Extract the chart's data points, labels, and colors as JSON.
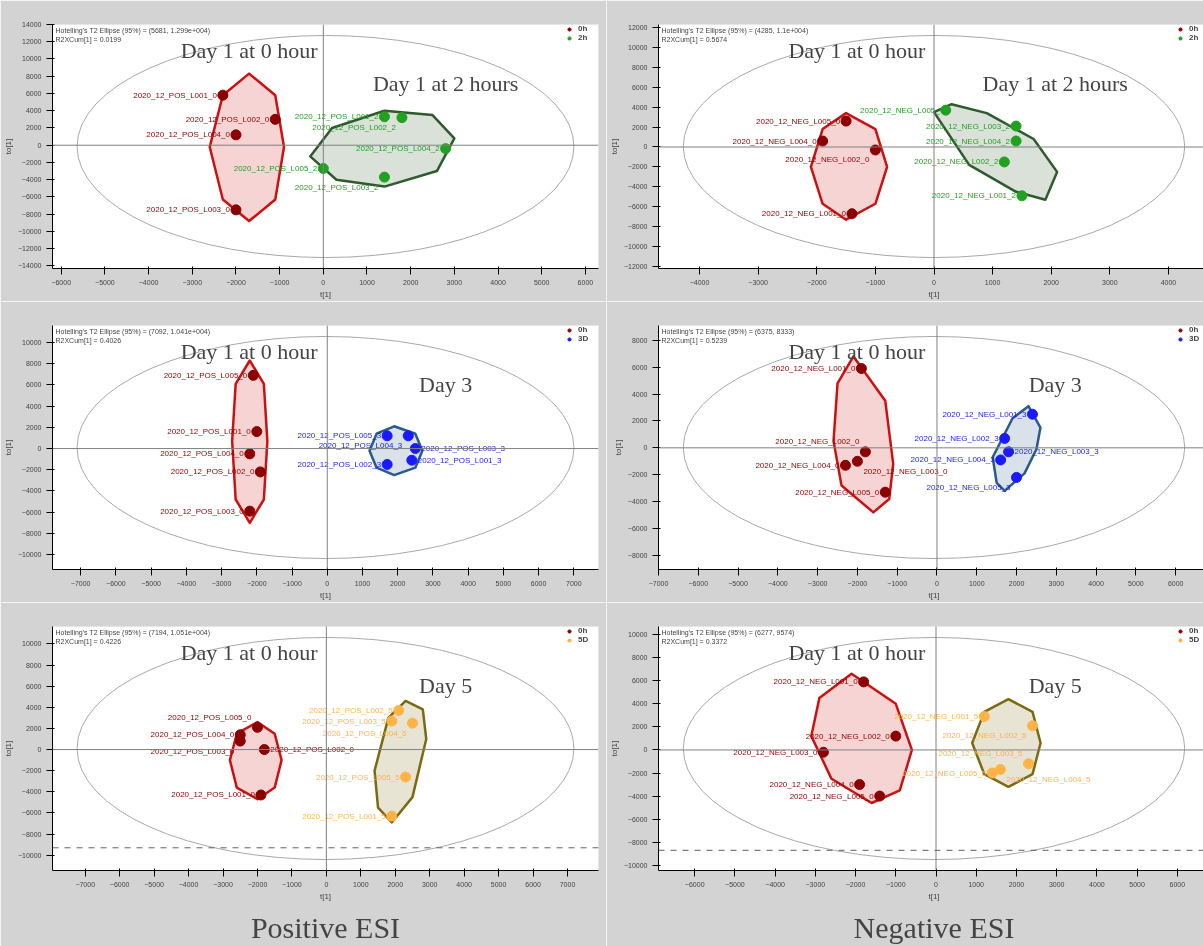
{
  "chart_data": [
    {
      "type": "scatter",
      "xlabel": "t[1]",
      "ylabel": "to[1]",
      "xlim": [
        -6200,
        6300
      ],
      "ylim": [
        -14300,
        14000
      ],
      "xticks": [
        -6000,
        -5000,
        -4000,
        -3000,
        -2000,
        -1000,
        0,
        1000,
        2000,
        3000,
        4000,
        5000,
        6000
      ],
      "yticks": [
        -14000,
        -12000,
        -10000,
        -8000,
        -6000,
        -4000,
        -2000,
        0,
        2000,
        4000,
        6000,
        8000,
        10000,
        12000,
        14000
      ],
      "grid": false,
      "legend": "top right",
      "annotations": [
        "Hotelling's T2 Ellipse (95%) = (5681, 1.299e+004)",
        "R2XCum[1] = 0.0199",
        "Day 1 at 0 hour",
        "Day 1 at 2 hours"
      ],
      "ref_lines": [
        {
          "axis": "x",
          "value": 0,
          "color": "#808080",
          "line_style": "solid"
        },
        {
          "axis": "y",
          "value": 0,
          "color": "#808080",
          "line_style": "solid"
        }
      ],
      "series": [
        {
          "type": "area",
          "color": "#cc1111",
          "x": [
            -900,
            -1100,
            -1700,
            -2300,
            -2600,
            -2300,
            -1700,
            -1100,
            -900
          ],
          "values": [
            -200,
            5800,
            8300,
            5800,
            -200,
            -6300,
            -8800,
            -6300,
            -200
          ]
        },
        {
          "type": "area",
          "color": "#2e5a2e",
          "x": [
            3000,
            2500,
            1400,
            200,
            -300,
            300,
            1400,
            2600,
            3000
          ],
          "values": [
            800,
            3500,
            4000,
            2000,
            -1300,
            -4000,
            -4800,
            -3000,
            800
          ]
        },
        {
          "type": "scatter",
          "name": "0h",
          "color": "#8b0000",
          "x": [
            -2300,
            -1100,
            -2000,
            -2000
          ],
          "values": [
            5800,
            3000,
            1200,
            -7500
          ],
          "value_labels": [
            "2020_12_POS_L001_0",
            "2020_12_POS_L002_0",
            "2020_12_POS_L004_0",
            "2020_12_POS_L003_0"
          ]
        },
        {
          "type": "scatter",
          "name": "2h",
          "color": "#22a022",
          "x": [
            1400,
            1800,
            2800,
            0,
            1400
          ],
          "values": [
            3300,
            3200,
            -400,
            -2700,
            -3700
          ],
          "value_labels": [
            "2020_12_POS_L001_2",
            "2020_12_POS_L002_2",
            "2020_12_POS_L004_2",
            "2020_12_POS_L005_2",
            "2020_12_POS_L003_2"
          ]
        }
      ]
    },
    {
      "type": "scatter",
      "xlabel": "t[1]",
      "ylabel": "to[1]",
      "xlim": [
        -4700,
        4700
      ],
      "ylim": [
        -12200,
        12300
      ],
      "xticks": [
        -4000,
        -3000,
        -2000,
        -1000,
        0,
        1000,
        2000,
        3000,
        4000
      ],
      "yticks": [
        -12000,
        -10000,
        -8000,
        -6000,
        -4000,
        -2000,
        0,
        2000,
        4000,
        6000,
        8000,
        10000,
        12000
      ],
      "grid": false,
      "legend": "top right",
      "annotations": [
        "Hotelling's T2 Ellipse (95%) = (4285, 1.1e+004)",
        "R2XCum[1] = 0.5674",
        "Day 1 at 0 hour",
        "Day 1 at 2 hours"
      ],
      "ref_lines": [
        {
          "axis": "x",
          "value": 0,
          "color": "#808080",
          "line_style": "solid"
        },
        {
          "axis": "y",
          "value": 0,
          "color": "#808080",
          "line_style": "solid"
        }
      ],
      "series": [
        {
          "type": "area",
          "color": "#cc1111",
          "x": [
            -800,
            -1000,
            -1500,
            -1900,
            -2100,
            -1900,
            -1500,
            -1000,
            -800
          ],
          "values": [
            -2000,
            1800,
            3400,
            1800,
            -2000,
            -5700,
            -7300,
            -5700,
            -2000
          ]
        },
        {
          "type": "area",
          "color": "#2e5a2e",
          "x": [
            0,
            300,
            900,
            1700,
            2100,
            1900,
            1400,
            600,
            0
          ],
          "values": [
            3500,
            4300,
            3400,
            800,
            -2500,
            -5300,
            -4500,
            -1800,
            3500
          ]
        },
        {
          "type": "scatter",
          "name": "0h",
          "color": "#8b0000",
          "x": [
            -1500,
            -1900,
            -1000,
            -1400
          ],
          "values": [
            2600,
            600,
            -300,
            -6700
          ],
          "value_labels": [
            "2020_12_NEG_L005_0",
            "2020_12_NEG_L004_0",
            "2020_12_NEG_L002_0",
            "2020_12_NEG_L001_0"
          ]
        },
        {
          "type": "scatter",
          "name": "2h",
          "color": "#22a022",
          "x": [
            200,
            1400,
            1400,
            1200,
            1500
          ],
          "values": [
            3700,
            2100,
            600,
            -1500,
            -4900
          ],
          "value_labels": [
            "2020_12_NEG_L005_",
            "2020_12_NEG_L003_2",
            "2020_12_NEG_L004_2",
            "2020_12_NEG_L002_2",
            "2020_12_NEG_L001_2"
          ]
        }
      ]
    },
    {
      "type": "scatter",
      "xlabel": "t[1]",
      "ylabel": "to[1]",
      "xlim": [
        -7800,
        7700
      ],
      "ylim": [
        -11400,
        11600
      ],
      "xticks": [
        -7000,
        -6000,
        -5000,
        -4000,
        -3000,
        -2000,
        -1000,
        0,
        1000,
        2000,
        3000,
        4000,
        5000,
        6000,
        7000
      ],
      "yticks": [
        -10000,
        -8000,
        -6000,
        -4000,
        -2000,
        0,
        2000,
        4000,
        6000,
        8000,
        10000
      ],
      "grid": false,
      "legend": "top right",
      "annotations": [
        "Hotelling's T2 Ellipse (95%) = (7092, 1.041e+004)",
        "R2XCum[1] = 0.4026",
        "Day 1 at 0 hour",
        "Day 3"
      ],
      "ref_lines": [
        {
          "axis": "x",
          "value": 0,
          "color": "#808080",
          "line_style": "solid"
        },
        {
          "axis": "y",
          "value": 0,
          "color": "#808080",
          "line_style": "solid"
        }
      ],
      "series": [
        {
          "type": "area",
          "color": "#cc1111",
          "x": [
            -1700,
            -1800,
            -2200,
            -2600,
            -2700,
            -2600,
            -2200,
            -1800,
            -1700
          ],
          "values": [
            700,
            6100,
            8300,
            6100,
            700,
            -4800,
            -7000,
            -4800,
            700
          ]
        },
        {
          "type": "area",
          "color": "#2a5a8a",
          "x": [
            2700,
            2500,
            1900,
            1400,
            1200,
            1400,
            1900,
            2500,
            2700
          ],
          "values": [
            -200,
            1400,
            2100,
            1400,
            -200,
            -1800,
            -2500,
            -1800,
            -200
          ]
        },
        {
          "type": "scatter",
          "name": "0h",
          "color": "#8b0000",
          "x": [
            -2100,
            -2000,
            -2200,
            -1900,
            -2200
          ],
          "values": [
            6900,
            1600,
            -500,
            -2200,
            -5900
          ],
          "value_labels": [
            "2020_12_POS_L005_0",
            "2020_12_POS_L001_0",
            "2020_12_POS_L004_0",
            "2020_12_POS_L002_0",
            "2020_12_POS_L003_0"
          ]
        },
        {
          "type": "scatter",
          "name": "3D",
          "color": "#1a1aff",
          "x": [
            1700,
            2300,
            2500,
            2400,
            1700
          ],
          "values": [
            1200,
            1200,
            0,
            -1100,
            -1500
          ],
          "value_labels": [
            "2020_12_POS_L005_3",
            "2020_12_POS_L004_3",
            "2020_12_POS_L003_3",
            "2020_12_POS_L001_3",
            "2020_12_POS_L002_3"
          ]
        }
      ]
    },
    {
      "type": "scatter",
      "xlabel": "t[1]",
      "ylabel": "to[1]",
      "xlim": [
        -7000,
        6850
      ],
      "ylim": [
        -9050,
        9100
      ],
      "xticks": [
        -7000,
        -6000,
        -5000,
        -4000,
        -3000,
        -2000,
        -1000,
        0,
        1000,
        2000,
        3000,
        4000,
        5000,
        6000
      ],
      "yticks": [
        -8000,
        -6000,
        -4000,
        -2000,
        0,
        2000,
        4000,
        6000,
        8000
      ],
      "grid": false,
      "legend": "top right",
      "annotations": [
        "Hotelling's T2 Ellipse (95%) = (6375, 8333)",
        "R2XCum[1] = 0.5239",
        "Day 1 at 0 hour",
        "Day 3"
      ],
      "ref_lines": [
        {
          "axis": "x",
          "value": 0,
          "color": "#808080",
          "line_style": "solid"
        },
        {
          "axis": "y",
          "value": 0,
          "color": "#808080",
          "line_style": "solid"
        }
      ],
      "series": [
        {
          "type": "area",
          "color": "#cc1111",
          "x": [
            -1100,
            -1300,
            -2100,
            -2500,
            -2600,
            -2400,
            -1600,
            -1200,
            -1100
          ],
          "values": [
            -1200,
            3500,
            6800,
            4800,
            500,
            -2800,
            -4800,
            -3800,
            -1200
          ]
        },
        {
          "type": "area",
          "color": "#2a5a8a",
          "x": [
            2600,
            2300,
            1900,
            1400,
            1500,
            1700,
            2200,
            2500,
            2600
          ],
          "values": [
            1500,
            3100,
            2200,
            -700,
            -2600,
            -3200,
            -1900,
            -100,
            1500
          ]
        },
        {
          "type": "scatter",
          "name": "0h",
          "color": "#8b0000",
          "x": [
            -1900,
            -1800,
            -2000,
            -2300,
            -1300
          ],
          "values": [
            5900,
            -300,
            -1000,
            -1300,
            -3300
          ],
          "value_labels": [
            "2020_12_NEG_L001_0",
            "2020_12_NEG_L002_0",
            "2020_12_NEG_L003_0",
            "2020_12_NEG_L004_0",
            "2020_12_NEG_L005_0"
          ]
        },
        {
          "type": "scatter",
          "name": "3D",
          "color": "#1a1aff",
          "x": [
            2400,
            1700,
            1800,
            1600,
            2000
          ],
          "values": [
            2500,
            700,
            -300,
            -900,
            -2200
          ],
          "value_labels": [
            "2020_12_NEG_L001_3",
            "2020_12_NEG_L002_3",
            "2020_12_NEG_L003_3",
            "2020_12_NEG_L004_3",
            "2020_12_NEG_L005_3"
          ]
        }
      ]
    },
    {
      "type": "scatter",
      "xlabel": "t[1]",
      "ylabel": "to[1]",
      "xlim": [
        -7950,
        7900
      ],
      "ylim": [
        -11450,
        11650
      ],
      "xticks": [
        -7000,
        -6000,
        -5000,
        -4000,
        -3000,
        -2000,
        -1000,
        0,
        1000,
        2000,
        3000,
        4000,
        5000,
        6000,
        7000
      ],
      "yticks": [
        -10000,
        -8000,
        -6000,
        -4000,
        -2000,
        0,
        2000,
        4000,
        6000,
        8000,
        10000
      ],
      "grid": false,
      "legend": "top right",
      "annotations": [
        "Hotelling's T2 Ellipse (95%) = (7194, 1.051e+004)",
        "R2XCum[1] = 0.4226",
        "Day 1 at 0 hour",
        "Day 5",
        "Positive ESI"
      ],
      "ref_lines": [
        {
          "axis": "x",
          "value": 0,
          "color": "#808080",
          "line_style": "solid"
        },
        {
          "axis": "y",
          "value": 0,
          "color": "#808080",
          "line_style": "solid"
        },
        {
          "axis": "y",
          "value": -9300,
          "color": "#606060",
          "line_style": "dashed"
        }
      ],
      "series": [
        {
          "type": "area",
          "color": "#cc1111",
          "x": [
            -1300,
            -1500,
            -2000,
            -2600,
            -2800,
            -2600,
            -2000,
            -1500,
            -1300
          ],
          "values": [
            -1000,
            1500,
            2600,
            1500,
            -1000,
            -3600,
            -4700,
            -3600,
            -1000
          ]
        },
        {
          "type": "area",
          "color": "#7a6a10",
          "x": [
            2900,
            2800,
            2300,
            1800,
            1400,
            1500,
            1900,
            2500,
            2900
          ],
          "values": [
            1000,
            3800,
            4600,
            3000,
            -2000,
            -5500,
            -6900,
            -4500,
            1000
          ]
        },
        {
          "type": "scatter",
          "name": "0h",
          "color": "#8b0000",
          "x": [
            -2000,
            -2500,
            -2500,
            -1800,
            -1900
          ],
          "values": [
            2100,
            1400,
            800,
            0,
            -4300
          ],
          "value_labels": [
            "2020_12_POS_L005_0",
            "2020_12_POS_L004_0",
            "2020_12_POS_L003_0",
            "2020_12_POS_L002_0",
            "2020_12_POS_L001_0"
          ]
        },
        {
          "type": "scatter",
          "name": "5D",
          "color": "#ffb347",
          "x": [
            2100,
            1900,
            2500,
            2300,
            1900
          ],
          "values": [
            3700,
            2700,
            2500,
            -2600,
            -6300
          ],
          "value_labels": [
            "2020_12_POS_L002_5",
            "2020_12_POS_L003_5",
            "2020_12_POS_L004_5",
            "2020_12_POS_L005_5",
            "2020_12_POS_L001_5"
          ]
        }
      ]
    },
    {
      "type": "scatter",
      "xlabel": "t[1]",
      "ylabel": "to[1]",
      "xlim": [
        -6900,
        6800
      ],
      "ylim": [
        -10450,
        10700
      ],
      "xticks": [
        -6000,
        -5000,
        -4000,
        -3000,
        -2000,
        -1000,
        0,
        1000,
        2000,
        3000,
        4000,
        5000,
        6000
      ],
      "yticks": [
        -10000,
        -8000,
        -6000,
        -4000,
        -2000,
        0,
        2000,
        4000,
        6000,
        8000,
        10000
      ],
      "grid": false,
      "legend": "top right",
      "annotations": [
        "Hotelling's T2 Ellipse (95%) = (6277, 9574)",
        "R2XCum[1] = 0.3372",
        "Day 1 at 0 hour",
        "Day 5",
        "Negative ESI"
      ],
      "ref_lines": [
        {
          "axis": "x",
          "value": 0,
          "color": "#808080",
          "line_style": "solid"
        },
        {
          "axis": "y",
          "value": 0,
          "color": "#808080",
          "line_style": "solid"
        },
        {
          "axis": "y",
          "value": -8700,
          "color": "#606060",
          "line_style": "dashed"
        }
      ],
      "series": [
        {
          "type": "area",
          "color": "#cc1111",
          "x": [
            -600,
            -1000,
            -2100,
            -2900,
            -3100,
            -2600,
            -1600,
            -900,
            -600
          ],
          "values": [
            0,
            4000,
            6600,
            4500,
            1200,
            -2500,
            -4600,
            -3500,
            0
          ]
        },
        {
          "type": "area",
          "color": "#7a6a10",
          "x": [
            2600,
            2400,
            1800,
            1200,
            900,
            1200,
            1800,
            2400,
            2600
          ],
          "values": [
            600,
            3300,
            4400,
            3300,
            600,
            -2100,
            -3200,
            -2100,
            600
          ]
        },
        {
          "type": "scatter",
          "name": "0h",
          "color": "#8b0000",
          "x": [
            -1800,
            -1000,
            -2800,
            -1900,
            -1400
          ],
          "values": [
            5900,
            1200,
            -200,
            -3000,
            -4000
          ],
          "value_labels": [
            "2020_12_NEG_L001_0",
            "2020_12_NEG_L002_0",
            "2020_12_NEG_L003_0",
            "2020_12_NEG_L004_0",
            "2020_12_NEG_L005_0"
          ]
        },
        {
          "type": "scatter",
          "name": "5D",
          "color": "#ffb347",
          "x": [
            1200,
            2400,
            2300,
            1600,
            1400
          ],
          "values": [
            2900,
            2100,
            -1200,
            -1700,
            -2000
          ],
          "value_labels": [
            "2020_12_NEG_L001_5",
            "2020_12_NEG_L002_5",
            "2020_12_NEG_L003_5",
            "2020_12_NEG_L004_5",
            "2020_12_NEG_L005_5"
          ]
        }
      ]
    }
  ]
}
